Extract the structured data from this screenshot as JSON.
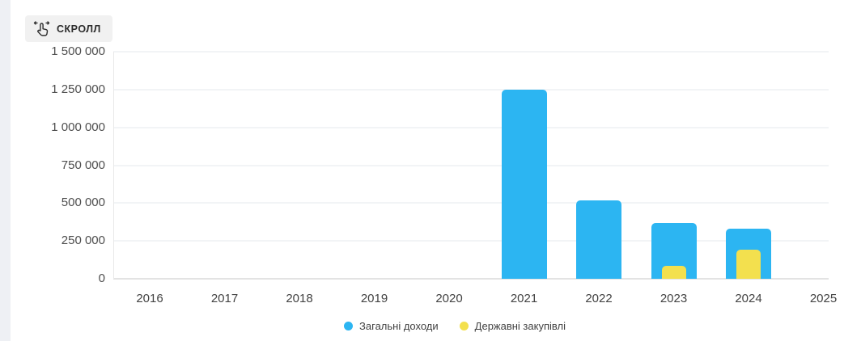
{
  "scroll_button": {
    "label": "СКРОЛЛ"
  },
  "chart_data": {
    "type": "bar",
    "title": "",
    "xlabel": "",
    "ylabel": "",
    "categories": [
      "2016",
      "2017",
      "2018",
      "2019",
      "2020",
      "2021",
      "2022",
      "2023",
      "2024",
      "2025"
    ],
    "series": [
      {
        "name": "Загальні доходи",
        "color": "#2CB5F2",
        "values": [
          0,
          0,
          0,
          0,
          0,
          1250000,
          520000,
          370000,
          330000,
          null
        ]
      },
      {
        "name": "Державні закупівлі",
        "color": "#F3E04E",
        "values": [
          0,
          0,
          0,
          0,
          0,
          0,
          0,
          85000,
          190000,
          null
        ]
      }
    ],
    "ylim": [
      0,
      1500000
    ],
    "yticks": [
      0,
      250000,
      500000,
      750000,
      1000000,
      1250000,
      1500000
    ],
    "ytick_labels": [
      "0",
      "250 000",
      "500 000",
      "750 000",
      "1 000 000",
      "1 250 000",
      "1 500 000"
    ],
    "grid": true,
    "legend_position": "bottom"
  },
  "legend": {
    "items": [
      {
        "label": "Загальні доходи",
        "color": "#2CB5F2"
      },
      {
        "label": "Державні закупівлі",
        "color": "#F3E04E"
      }
    ]
  }
}
